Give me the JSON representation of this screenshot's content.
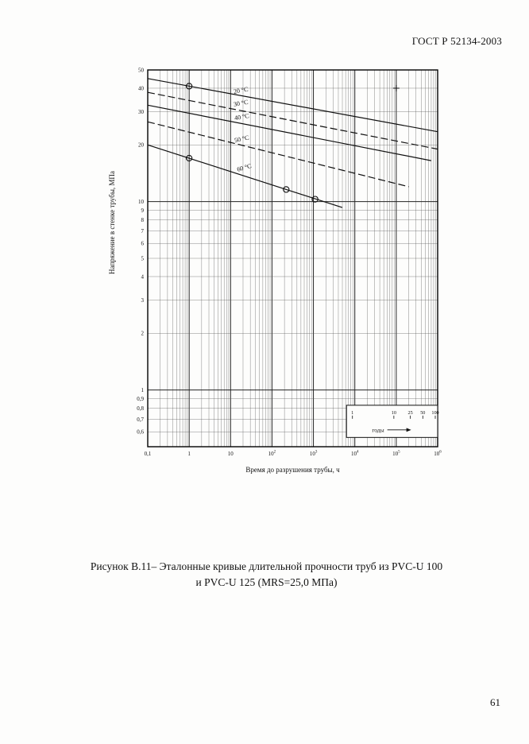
{
  "page": {
    "header": "ГОСТ Р 52134-2003",
    "page_number": "61",
    "caption_line1": "Рисунок В.11– Эталонные кривые длительной прочности труб из PVC-U 100",
    "caption_line2": "и PVC-U 125 (MRS=25,0 МПа)"
  },
  "chart_data": {
    "type": "line",
    "title": "",
    "xlabel": "Время до разрушения трубы, ч",
    "ylabel": "Напряжение в стенке трубы, МПа",
    "x_scale": "log",
    "y_scale": "log",
    "xlim": [
      0.1,
      1000000
    ],
    "ylim": [
      0.5,
      50
    ],
    "grid": true,
    "x_ticks": [
      {
        "v": 0.1,
        "label": "0,1"
      },
      {
        "v": 1,
        "label": "1"
      },
      {
        "v": 10,
        "label": "10"
      },
      {
        "v": 100,
        "label": "10^2"
      },
      {
        "v": 1000,
        "label": "10^3"
      },
      {
        "v": 10000,
        "label": "10^4"
      },
      {
        "v": 100000,
        "label": "10^5"
      },
      {
        "v": 1000000,
        "label": "10^6"
      }
    ],
    "y_ticks": [
      {
        "v": 50,
        "label": "50"
      },
      {
        "v": 40,
        "label": "40"
      },
      {
        "v": 30,
        "label": "30"
      },
      {
        "v": 20,
        "label": "20"
      },
      {
        "v": 10,
        "label": "10"
      },
      {
        "v": 9,
        "label": "9"
      },
      {
        "v": 8,
        "label": "8"
      },
      {
        "v": 7,
        "label": "7"
      },
      {
        "v": 6,
        "label": "6"
      },
      {
        "v": 5,
        "label": "5"
      },
      {
        "v": 4,
        "label": "4"
      },
      {
        "v": 3,
        "label": "3"
      },
      {
        "v": 2,
        "label": "2"
      },
      {
        "v": 1,
        "label": "1"
      },
      {
        "v": 0.9,
        "label": "0,9"
      },
      {
        "v": 0.8,
        "label": "0,8"
      },
      {
        "v": 0.7,
        "label": "0,7"
      },
      {
        "v": 0.6,
        "label": "0,6"
      }
    ],
    "series": [
      {
        "name": "20 °C",
        "style": "solid",
        "points": [
          [
            0.1,
            45
          ],
          [
            1000000,
            23.5
          ]
        ],
        "markers": [
          [
            1,
            41
          ]
        ],
        "label_at": [
          18,
          38
        ],
        "label_angle": -10
      },
      {
        "name": "30 °C",
        "style": "dashed",
        "points": [
          [
            0.1,
            38
          ],
          [
            1000000,
            19
          ]
        ],
        "markers": [],
        "label_at": [
          18,
          32.5
        ],
        "label_angle": -10
      },
      {
        "name": "40 °C",
        "style": "solid",
        "points": [
          [
            0.1,
            32.5
          ],
          [
            700000,
            16.5
          ]
        ],
        "markers": [],
        "label_at": [
          19,
          27.5
        ],
        "label_angle": -10
      },
      {
        "name": "50 °C",
        "style": "dashed",
        "points": [
          [
            0.1,
            26.5
          ],
          [
            200000,
            12
          ]
        ],
        "markers": [],
        "label_at": [
          19,
          21
        ],
        "label_angle": -12
      },
      {
        "name": "60 °C",
        "style": "solid",
        "points": [
          [
            0.1,
            20
          ],
          [
            5000,
            9.3
          ]
        ],
        "markers": [
          [
            1,
            17
          ],
          [
            220,
            11.6
          ],
          [
            1100,
            10.3
          ]
        ],
        "label_at": [
          22,
          14.8
        ],
        "label_angle": -16
      }
    ],
    "annotations": [
      {
        "type": "plus",
        "x": 100000,
        "y": 40
      }
    ],
    "years_inset": {
      "label": "годы",
      "hours_per_year": 8760,
      "x_range": [
        6300,
        1000000
      ],
      "y_range": [
        0.56,
        0.83
      ],
      "years": [
        {
          "v": 1,
          "label": "1"
        },
        {
          "v": 10,
          "label": "10"
        },
        {
          "v": 25,
          "label": "25"
        },
        {
          "v": 50,
          "label": "50"
        },
        {
          "v": 100,
          "label": "100"
        }
      ]
    }
  }
}
